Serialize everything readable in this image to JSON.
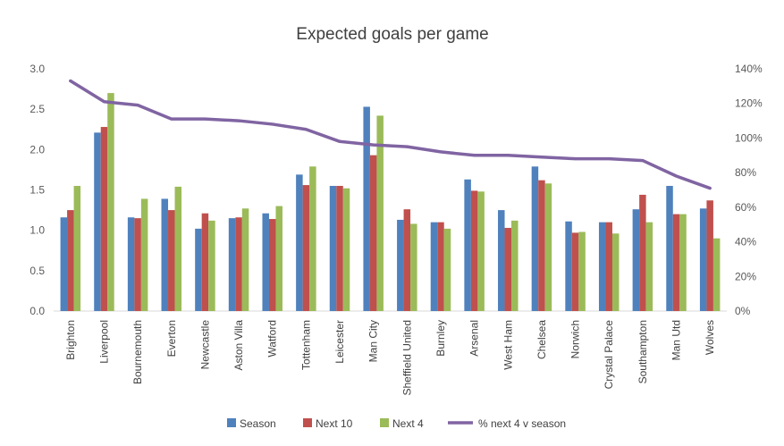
{
  "chart_data": {
    "type": "bar",
    "title": "Expected goals per game",
    "categories": [
      "Brighton",
      "Liverpool",
      "Bournemouth",
      "Everton",
      "Newcastle",
      "Aston Villa",
      "Watford",
      "Tottenham",
      "Leicester",
      "Man City",
      "Sheffield United",
      "Burnley",
      "Arsenal",
      "West Ham",
      "Chelsea",
      "Norwich",
      "Crystal Palace",
      "Southampton",
      "Man Utd",
      "Wolves"
    ],
    "series": [
      {
        "name": "Season",
        "type": "bar",
        "axis": "left",
        "color": "#4F81BD",
        "values": [
          1.16,
          2.21,
          1.16,
          1.39,
          1.02,
          1.15,
          1.21,
          1.69,
          1.55,
          2.53,
          1.13,
          1.1,
          1.63,
          1.25,
          1.79,
          1.11,
          1.1,
          1.26,
          1.55,
          1.27
        ]
      },
      {
        "name": "Next 10",
        "type": "bar",
        "axis": "left",
        "color": "#C0504D",
        "values": [
          1.25,
          2.28,
          1.15,
          1.25,
          1.21,
          1.16,
          1.14,
          1.56,
          1.55,
          1.93,
          1.26,
          1.1,
          1.49,
          1.03,
          1.62,
          0.97,
          1.1,
          1.44,
          1.2,
          1.37
        ]
      },
      {
        "name": "Next 4",
        "type": "bar",
        "axis": "left",
        "color": "#9BBB59",
        "values": [
          1.55,
          2.7,
          1.39,
          1.54,
          1.12,
          1.27,
          1.3,
          1.79,
          1.52,
          2.42,
          1.08,
          1.02,
          1.48,
          1.12,
          1.58,
          0.98,
          0.96,
          1.1,
          1.2,
          0.9
        ]
      },
      {
        "name": "% next 4 v season",
        "type": "line",
        "axis": "right",
        "color": "#8064A2",
        "values": [
          133,
          121,
          119,
          111,
          111,
          110,
          108,
          105,
          98,
          96,
          95,
          92,
          90,
          90,
          89,
          88,
          88,
          87,
          78,
          71
        ]
      }
    ],
    "y_left": {
      "min": 0,
      "max": 3.0,
      "ticks": [
        "0.0",
        "0.5",
        "1.0",
        "1.5",
        "2.0",
        "2.5",
        "3.0"
      ]
    },
    "y_right": {
      "min": 0,
      "max": 140,
      "ticks": [
        "0%",
        "20%",
        "40%",
        "60%",
        "80%",
        "100%",
        "120%",
        "140%"
      ]
    },
    "grid": false,
    "legend": "bottom"
  }
}
